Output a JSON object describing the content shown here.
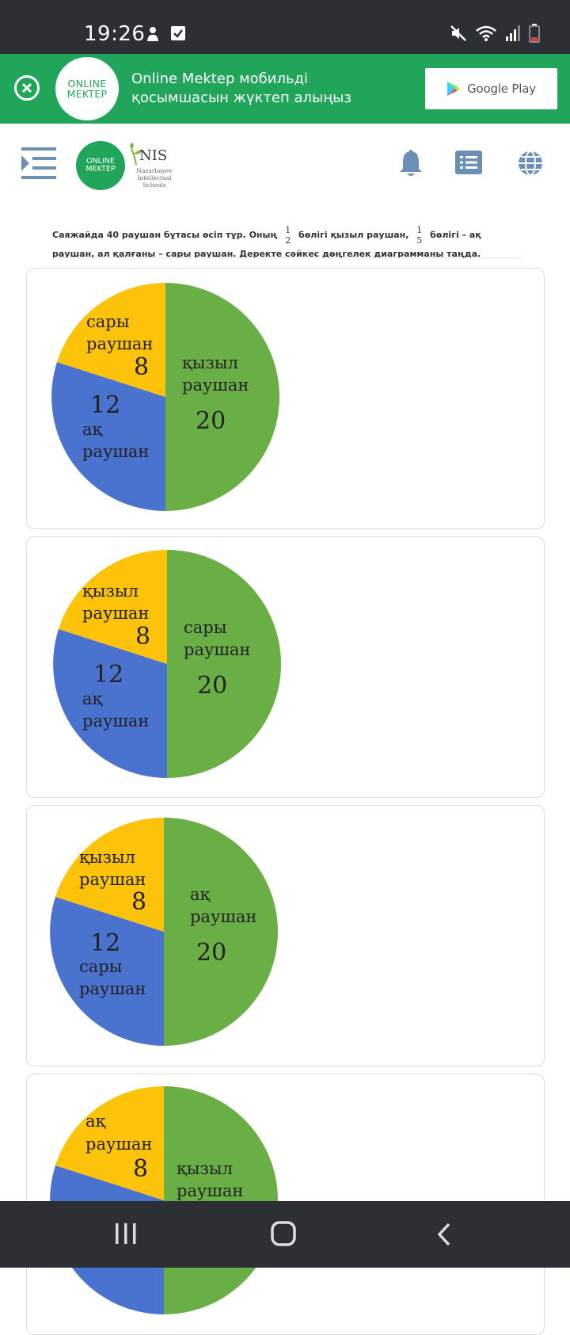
{
  "status_bar": {
    "time": "19:26"
  },
  "banner": {
    "logo_line1": "ONLINE",
    "logo_line2": "MEKTEP",
    "text": "Online Mektep мобильді қосымшасын жүктеп алыңыз",
    "store_button": "Google Play"
  },
  "topnav": {
    "logo_line1": "ONLINE",
    "logo_line2": "MEKTEP",
    "nis_title": "NIS",
    "nis_sub1": "Nazarbayev",
    "nis_sub2": "Intellectual",
    "nis_sub3": "Schools"
  },
  "question": {
    "part1": "Саяжайда 40 раушан бұтасы өсіп тұр. Оның",
    "frac1_num": "1",
    "frac1_den": "2",
    "part2": "бөлігі қызыл раушан,",
    "frac2_num": "1",
    "frac2_den": "5",
    "part3": "бөлігі – ақ раушан, ал қалғаны – сары раушан. Деректе сәйкес дөңгелек диаграмманы таңда."
  },
  "colors": {
    "green": "#6aaf45",
    "blue": "#4a72cf",
    "yellow": "#fdc20a",
    "brand": "#21a55a"
  },
  "options": [
    {
      "big": {
        "line1": "қызыл",
        "line2": "раушан",
        "value": "20"
      },
      "small_top": {
        "line1": "сары",
        "line2": "раушан",
        "value": "8"
      },
      "small_bottom": {
        "value": "12",
        "line1": "ақ",
        "line2": "раушан"
      }
    },
    {
      "big": {
        "line1": "сары",
        "line2": "раушан",
        "value": "20"
      },
      "small_top": {
        "line1": "қызыл",
        "line2": "раушан",
        "value": "8"
      },
      "small_bottom": {
        "value": "12",
        "line1": "ақ",
        "line2": "раушан"
      }
    },
    {
      "big": {
        "line1": "ақ",
        "line2": "раушан",
        "value": "20"
      },
      "small_top": {
        "line1": "қызыл",
        "line2": "раушан",
        "value": "8"
      },
      "small_bottom": {
        "value": "12",
        "line1": "сары",
        "line2": "раушан"
      }
    },
    {
      "big": {
        "line1": "қызыл",
        "line2": "раушан",
        "value": ""
      },
      "small_top": {
        "line1": "ақ",
        "line2": "раушан",
        "value": "8"
      },
      "small_bottom": {
        "value": "",
        "line1": "",
        "line2": ""
      }
    }
  ]
}
